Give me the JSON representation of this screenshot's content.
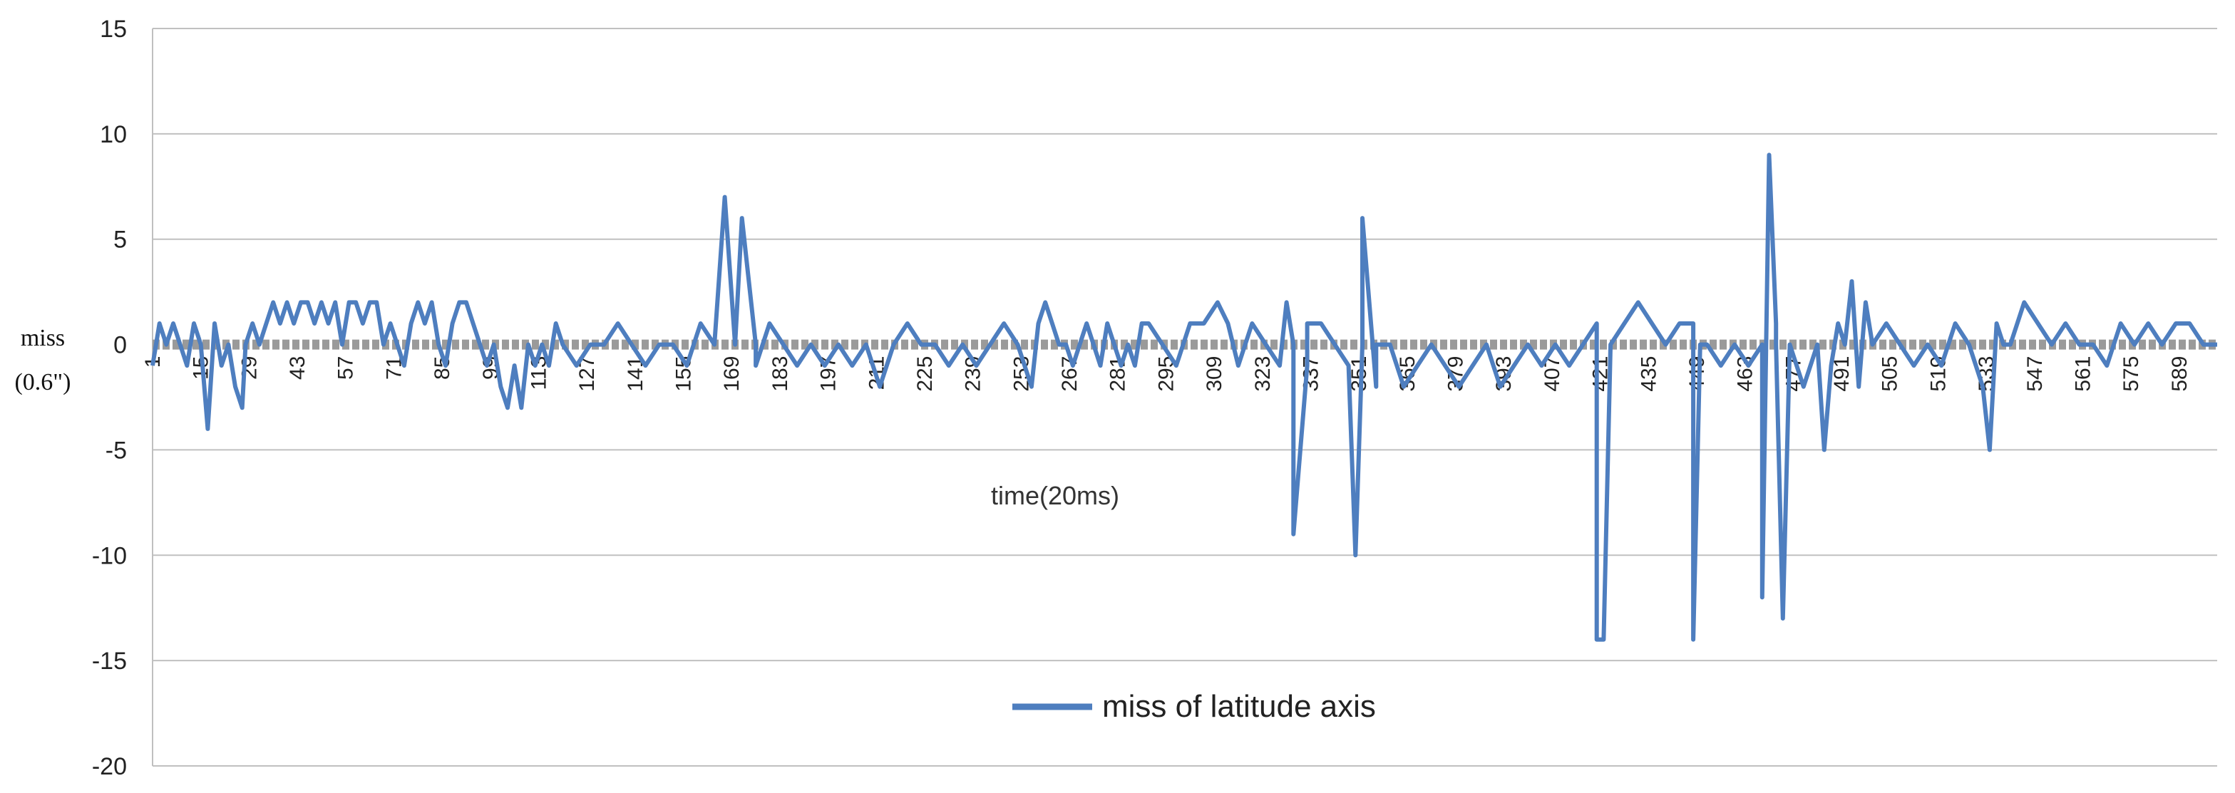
{
  "chart_data": {
    "type": "line",
    "xlabel": "time(20ms)",
    "ylabel_lines": [
      "miss",
      "(0.6\")"
    ],
    "ylim": [
      -20,
      15
    ],
    "yticks": [
      15,
      10,
      5,
      0,
      -5,
      -10,
      -15,
      -20
    ],
    "xticks": [
      1,
      15,
      29,
      43,
      57,
      71,
      85,
      99,
      113,
      127,
      141,
      155,
      169,
      183,
      197,
      211,
      225,
      239,
      253,
      267,
      281,
      295,
      309,
      323,
      337,
      351,
      365,
      379,
      393,
      407,
      421,
      435,
      449,
      463,
      477,
      491,
      505,
      519,
      533,
      547,
      561,
      575,
      589
    ],
    "xlim": [
      1,
      600
    ],
    "grid": true,
    "legend_position": "bottom",
    "colors": {
      "series": "#4e7ebf",
      "zero_line": "#9a9a9a",
      "grid": "#c0c0c0",
      "axis": "#bfbfbf"
    },
    "series": [
      {
        "name": "miss of latitude axis",
        "points": [
          [
            1,
            -1
          ],
          [
            3,
            1
          ],
          [
            5,
            0
          ],
          [
            7,
            1
          ],
          [
            9,
            0
          ],
          [
            11,
            -1
          ],
          [
            13,
            1
          ],
          [
            15,
            0
          ],
          [
            17,
            -4
          ],
          [
            19,
            1
          ],
          [
            21,
            -1
          ],
          [
            23,
            0
          ],
          [
            25,
            -2
          ],
          [
            27,
            -3
          ],
          [
            28,
            0
          ],
          [
            30,
            1
          ],
          [
            32,
            0
          ],
          [
            34,
            1
          ],
          [
            36,
            2
          ],
          [
            38,
            1
          ],
          [
            40,
            2
          ],
          [
            42,
            1
          ],
          [
            44,
            2
          ],
          [
            46,
            2
          ],
          [
            48,
            1
          ],
          [
            50,
            2
          ],
          [
            52,
            1
          ],
          [
            54,
            2
          ],
          [
            56,
            0
          ],
          [
            58,
            2
          ],
          [
            60,
            2
          ],
          [
            62,
            1
          ],
          [
            64,
            2
          ],
          [
            66,
            2
          ],
          [
            68,
            0
          ],
          [
            70,
            1
          ],
          [
            72,
            0
          ],
          [
            74,
            -1
          ],
          [
            76,
            1
          ],
          [
            78,
            2
          ],
          [
            80,
            1
          ],
          [
            82,
            2
          ],
          [
            84,
            0
          ],
          [
            86,
            -1
          ],
          [
            88,
            1
          ],
          [
            90,
            2
          ],
          [
            92,
            2
          ],
          [
            94,
            1
          ],
          [
            96,
            0
          ],
          [
            98,
            -1
          ],
          [
            100,
            0
          ],
          [
            102,
            -2
          ],
          [
            104,
            -3
          ],
          [
            106,
            -1
          ],
          [
            108,
            -3
          ],
          [
            110,
            0
          ],
          [
            112,
            -1
          ],
          [
            114,
            0
          ],
          [
            116,
            -1
          ],
          [
            118,
            1
          ],
          [
            120,
            0
          ],
          [
            124,
            -1
          ],
          [
            128,
            0
          ],
          [
            132,
            0
          ],
          [
            136,
            1
          ],
          [
            140,
            0
          ],
          [
            144,
            -1
          ],
          [
            148,
            0
          ],
          [
            152,
            0
          ],
          [
            156,
            -1
          ],
          [
            160,
            1
          ],
          [
            164,
            0
          ],
          [
            170,
            0
          ],
          [
            176,
            0
          ],
          [
            180,
            1
          ],
          [
            184,
            0
          ],
          [
            188,
            -1
          ],
          [
            192,
            0
          ],
          [
            196,
            -1
          ],
          [
            200,
            0
          ],
          [
            204,
            -1
          ],
          [
            208,
            0
          ],
          [
            212,
            -2
          ],
          [
            216,
            0
          ],
          [
            220,
            1
          ],
          [
            224,
            0
          ],
          [
            228,
            0
          ],
          [
            232,
            -1
          ],
          [
            236,
            0
          ],
          [
            240,
            -1
          ],
          [
            244,
            0
          ],
          [
            248,
            1
          ],
          [
            252,
            0
          ],
          [
            256,
            -2
          ],
          [
            258,
            1
          ],
          [
            260,
            2
          ],
          [
            262,
            1
          ],
          [
            264,
            0
          ],
          [
            266,
            0
          ],
          [
            268,
            -1
          ],
          [
            270,
            0
          ],
          [
            272,
            1
          ],
          [
            274,
            0
          ],
          [
            276,
            -1
          ],
          [
            278,
            1
          ],
          [
            280,
            0
          ],
          [
            282,
            -1
          ],
          [
            284,
            0
          ],
          [
            286,
            -1
          ],
          [
            288,
            1
          ],
          [
            290,
            1
          ],
          [
            294,
            0
          ],
          [
            298,
            -1
          ],
          [
            302,
            1
          ],
          [
            306,
            1
          ],
          [
            310,
            2
          ],
          [
            313,
            1
          ],
          [
            316,
            -1
          ],
          [
            320,
            1
          ],
          [
            324,
            0
          ],
          [
            328,
            -1
          ],
          [
            332,
            0
          ],
          [
            336,
            -1
          ],
          [
            340,
            1
          ],
          [
            344,
            0
          ],
          [
            348,
            -1
          ],
          [
            352,
            0
          ],
          [
            356,
            -2
          ],
          [
            360,
            0
          ],
          [
            364,
            -2
          ],
          [
            368,
            -1
          ],
          [
            372,
            0
          ],
          [
            376,
            -1
          ],
          [
            380,
            -2
          ],
          [
            384,
            -1
          ],
          [
            388,
            0
          ],
          [
            392,
            -2
          ],
          [
            396,
            -1
          ],
          [
            400,
            0
          ],
          [
            404,
            -1
          ],
          [
            408,
            0
          ],
          [
            412,
            -1
          ],
          [
            416,
            0
          ],
          [
            420,
            1
          ],
          [
            424,
            0
          ],
          [
            428,
            1
          ],
          [
            432,
            2
          ],
          [
            436,
            1
          ],
          [
            440,
            0
          ],
          [
            444,
            1
          ],
          [
            448,
            1
          ],
          [
            452,
            0
          ],
          [
            456,
            -1
          ],
          [
            460,
            0
          ],
          [
            464,
            -1
          ],
          [
            468,
            0
          ],
          [
            472,
            1
          ],
          [
            476,
            0
          ],
          [
            480,
            -2
          ],
          [
            484,
            0
          ],
          [
            488,
            -1
          ],
          [
            492,
            0
          ],
          [
            496,
            -2
          ],
          [
            500,
            0
          ],
          [
            504,
            1
          ],
          [
            508,
            0
          ],
          [
            512,
            -1
          ],
          [
            516,
            0
          ],
          [
            520,
            -1
          ],
          [
            524,
            1
          ],
          [
            528,
            0
          ],
          [
            532,
            -2
          ],
          [
            536,
            1
          ],
          [
            540,
            0
          ],
          [
            544,
            2
          ],
          [
            548,
            1
          ],
          [
            552,
            0
          ],
          [
            556,
            1
          ],
          [
            560,
            0
          ],
          [
            564,
            0
          ],
          [
            568,
            -1
          ],
          [
            572,
            1
          ],
          [
            576,
            0
          ],
          [
            580,
            1
          ],
          [
            584,
            0
          ],
          [
            588,
            1
          ],
          [
            592,
            1
          ],
          [
            596,
            0
          ],
          [
            600,
            0
          ]
        ],
        "spikes": [
          [
            167,
            7
          ],
          [
            172,
            6
          ],
          [
            176,
            -1
          ],
          [
            330,
            2
          ],
          [
            332,
            -9
          ],
          [
            336,
            1
          ],
          [
            350,
            -10
          ],
          [
            352,
            6
          ],
          [
            356,
            0
          ],
          [
            420,
            -14
          ],
          [
            422,
            -14
          ],
          [
            424,
            0
          ],
          [
            448,
            -14
          ],
          [
            450,
            0
          ],
          [
            468,
            -12
          ],
          [
            470,
            9
          ],
          [
            472,
            0
          ],
          [
            474,
            -13
          ],
          [
            476,
            0
          ],
          [
            486,
            -5
          ],
          [
            490,
            1
          ],
          [
            494,
            3
          ],
          [
            498,
            2
          ],
          [
            534,
            -5
          ],
          [
            538,
            0
          ]
        ]
      }
    ]
  }
}
